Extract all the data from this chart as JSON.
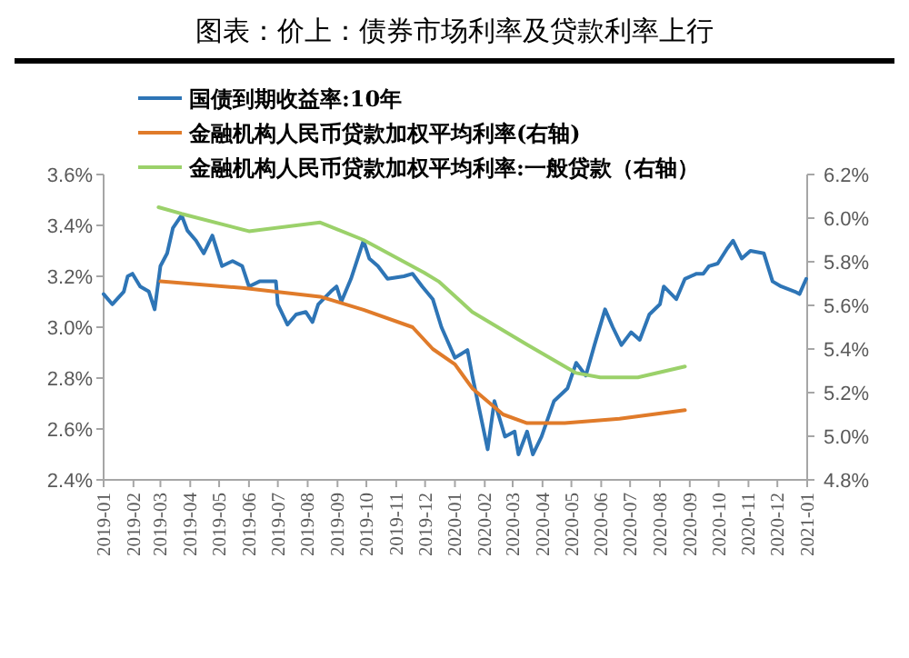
{
  "chart_data": {
    "type": "line",
    "title": "图表：价上：债券市场利率及贷款利率上行",
    "legend": "top left",
    "line_style": "solid",
    "marker": "none",
    "xlim": [
      "2019-01-01",
      "2021-01-01"
    ],
    "xticks": [
      "2019-01",
      "2019-02",
      "2019-03",
      "2019-04",
      "2019-05",
      "2019-06",
      "2019-07",
      "2019-08",
      "2019-09",
      "2019-10",
      "2019-11",
      "2019-12",
      "2020-01",
      "2020-02",
      "2020-03",
      "2020-04",
      "2020-05",
      "2020-06",
      "2020-07",
      "2020-08",
      "2020-09",
      "2020-10",
      "2020-11",
      "2020-12",
      "2021-01"
    ],
    "ylim": [
      2.4,
      3.6
    ],
    "yticks": [
      {
        "value": 2.4,
        "label": "2.4%"
      },
      {
        "value": 2.6,
        "label": "2.6%"
      },
      {
        "value": 2.8,
        "label": "2.8%"
      },
      {
        "value": 3.0,
        "label": "3.0%"
      },
      {
        "value": 3.2,
        "label": "3.2%"
      },
      {
        "value": 3.4,
        "label": "3.4%"
      },
      {
        "value": 3.6,
        "label": "3.6%"
      }
    ],
    "y2lim": [
      4.8,
      6.2
    ],
    "y2ticks": [
      {
        "value": 4.8,
        "label": "4.8%"
      },
      {
        "value": 5.0,
        "label": "5.0%"
      },
      {
        "value": 5.2,
        "label": "5.2%"
      },
      {
        "value": 5.4,
        "label": "5.4%"
      },
      {
        "value": 5.6,
        "label": "5.6%"
      },
      {
        "value": 5.8,
        "label": "5.8%"
      },
      {
        "value": 6.0,
        "label": "6.0%"
      },
      {
        "value": 6.2,
        "label": "6.2%"
      }
    ],
    "series": [
      {
        "name": "国债到期收益率:10年",
        "color": "#2e75b6",
        "x": [
          "2019-01-01",
          "2019-01-10",
          "2019-01-22",
          "2019-01-26",
          "2019-01-31",
          "2019-02-08",
          "2019-02-17",
          "2019-02-23",
          "2019-03-01",
          "2019-03-08",
          "2019-03-14",
          "2019-03-23",
          "2019-03-29",
          "2019-04-07",
          "2019-04-15",
          "2019-04-24",
          "2019-05-04",
          "2019-05-15",
          "2019-05-25",
          "2019-06-01",
          "2019-06-12",
          "2019-06-29",
          "2019-07-01",
          "2019-07-11",
          "2019-07-20",
          "2019-07-30",
          "2019-08-06",
          "2019-08-12",
          "2019-08-25",
          "2019-08-31",
          "2019-09-05",
          "2019-09-15",
          "2019-09-28",
          "2019-10-04",
          "2019-10-13",
          "2019-10-23",
          "2019-11-09",
          "2019-11-18",
          "2019-11-28",
          "2019-12-09",
          "2019-12-18",
          "2020-01-01",
          "2020-01-14",
          "2020-01-19",
          "2020-02-04",
          "2020-02-11",
          "2020-02-22",
          "2020-03-03",
          "2020-03-07",
          "2020-03-16",
          "2020-03-22",
          "2020-03-31",
          "2020-04-13",
          "2020-04-27",
          "2020-05-06",
          "2020-05-16",
          "2020-05-25",
          "2020-06-05",
          "2020-06-13",
          "2020-06-22",
          "2020-07-02",
          "2020-07-11",
          "2020-07-21",
          "2020-08-01",
          "2020-08-05",
          "2020-08-18",
          "2020-08-27",
          "2020-09-08",
          "2020-09-15",
          "2020-09-21",
          "2020-09-30",
          "2020-10-10",
          "2020-10-16",
          "2020-10-25",
          "2020-11-03",
          "2020-11-17",
          "2020-11-26",
          "2020-12-05",
          "2020-12-19",
          "2020-12-24",
          "2020-12-31"
        ],
        "values": [
          3.13,
          3.09,
          3.14,
          3.2,
          3.21,
          3.16,
          3.14,
          3.07,
          3.24,
          3.29,
          3.39,
          3.44,
          3.38,
          3.34,
          3.29,
          3.36,
          3.24,
          3.26,
          3.24,
          3.16,
          3.18,
          3.18,
          3.09,
          3.01,
          3.05,
          3.06,
          3.02,
          3.09,
          3.14,
          3.16,
          3.1,
          3.19,
          3.34,
          3.27,
          3.24,
          3.19,
          3.2,
          3.21,
          3.16,
          3.11,
          3.0,
          2.88,
          2.91,
          2.81,
          2.52,
          2.71,
          2.57,
          2.59,
          2.5,
          2.59,
          2.5,
          2.57,
          2.71,
          2.76,
          2.86,
          2.81,
          2.93,
          3.07,
          3.0,
          2.93,
          2.98,
          2.95,
          3.05,
          3.09,
          3.16,
          3.11,
          3.19,
          3.21,
          3.21,
          3.24,
          3.25,
          3.31,
          3.34,
          3.27,
          3.3,
          3.29,
          3.18,
          3.16,
          3.14,
          3.13,
          3.19
        ]
      },
      {
        "name": "金融机构人民币贷款加权平均利率(右轴)",
        "color": "#e07b2a",
        "axis": "y2",
        "x": [
          "2019-03-01",
          "2019-05-25",
          "2019-08-14",
          "2019-09-28",
          "2019-11-18",
          "2019-12-09",
          "2020-01-01",
          "2020-01-19",
          "2020-02-20",
          "2020-03-16",
          "2020-04-24",
          "2020-06-20",
          "2020-08-27"
        ],
        "values": [
          5.71,
          5.68,
          5.64,
          5.58,
          5.5,
          5.4,
          5.33,
          5.22,
          5.1,
          5.06,
          5.06,
          5.08,
          5.12
        ]
      },
      {
        "name": "金融机构人民币贷款加权平均利率:一般贷款（右轴）",
        "color": "#9bd16a",
        "axis": "y2",
        "x": [
          "2019-02-27",
          "2019-03-23",
          "2019-06-01",
          "2019-08-14",
          "2019-09-28",
          "2019-11-30",
          "2019-12-15",
          "2020-01-19",
          "2020-03-16",
          "2020-05-06",
          "2020-05-31",
          "2020-07-09",
          "2020-08-27"
        ],
        "values": [
          6.05,
          6.02,
          5.94,
          5.98,
          5.9,
          5.75,
          5.71,
          5.57,
          5.42,
          5.29,
          5.27,
          5.27,
          5.32
        ]
      }
    ]
  }
}
